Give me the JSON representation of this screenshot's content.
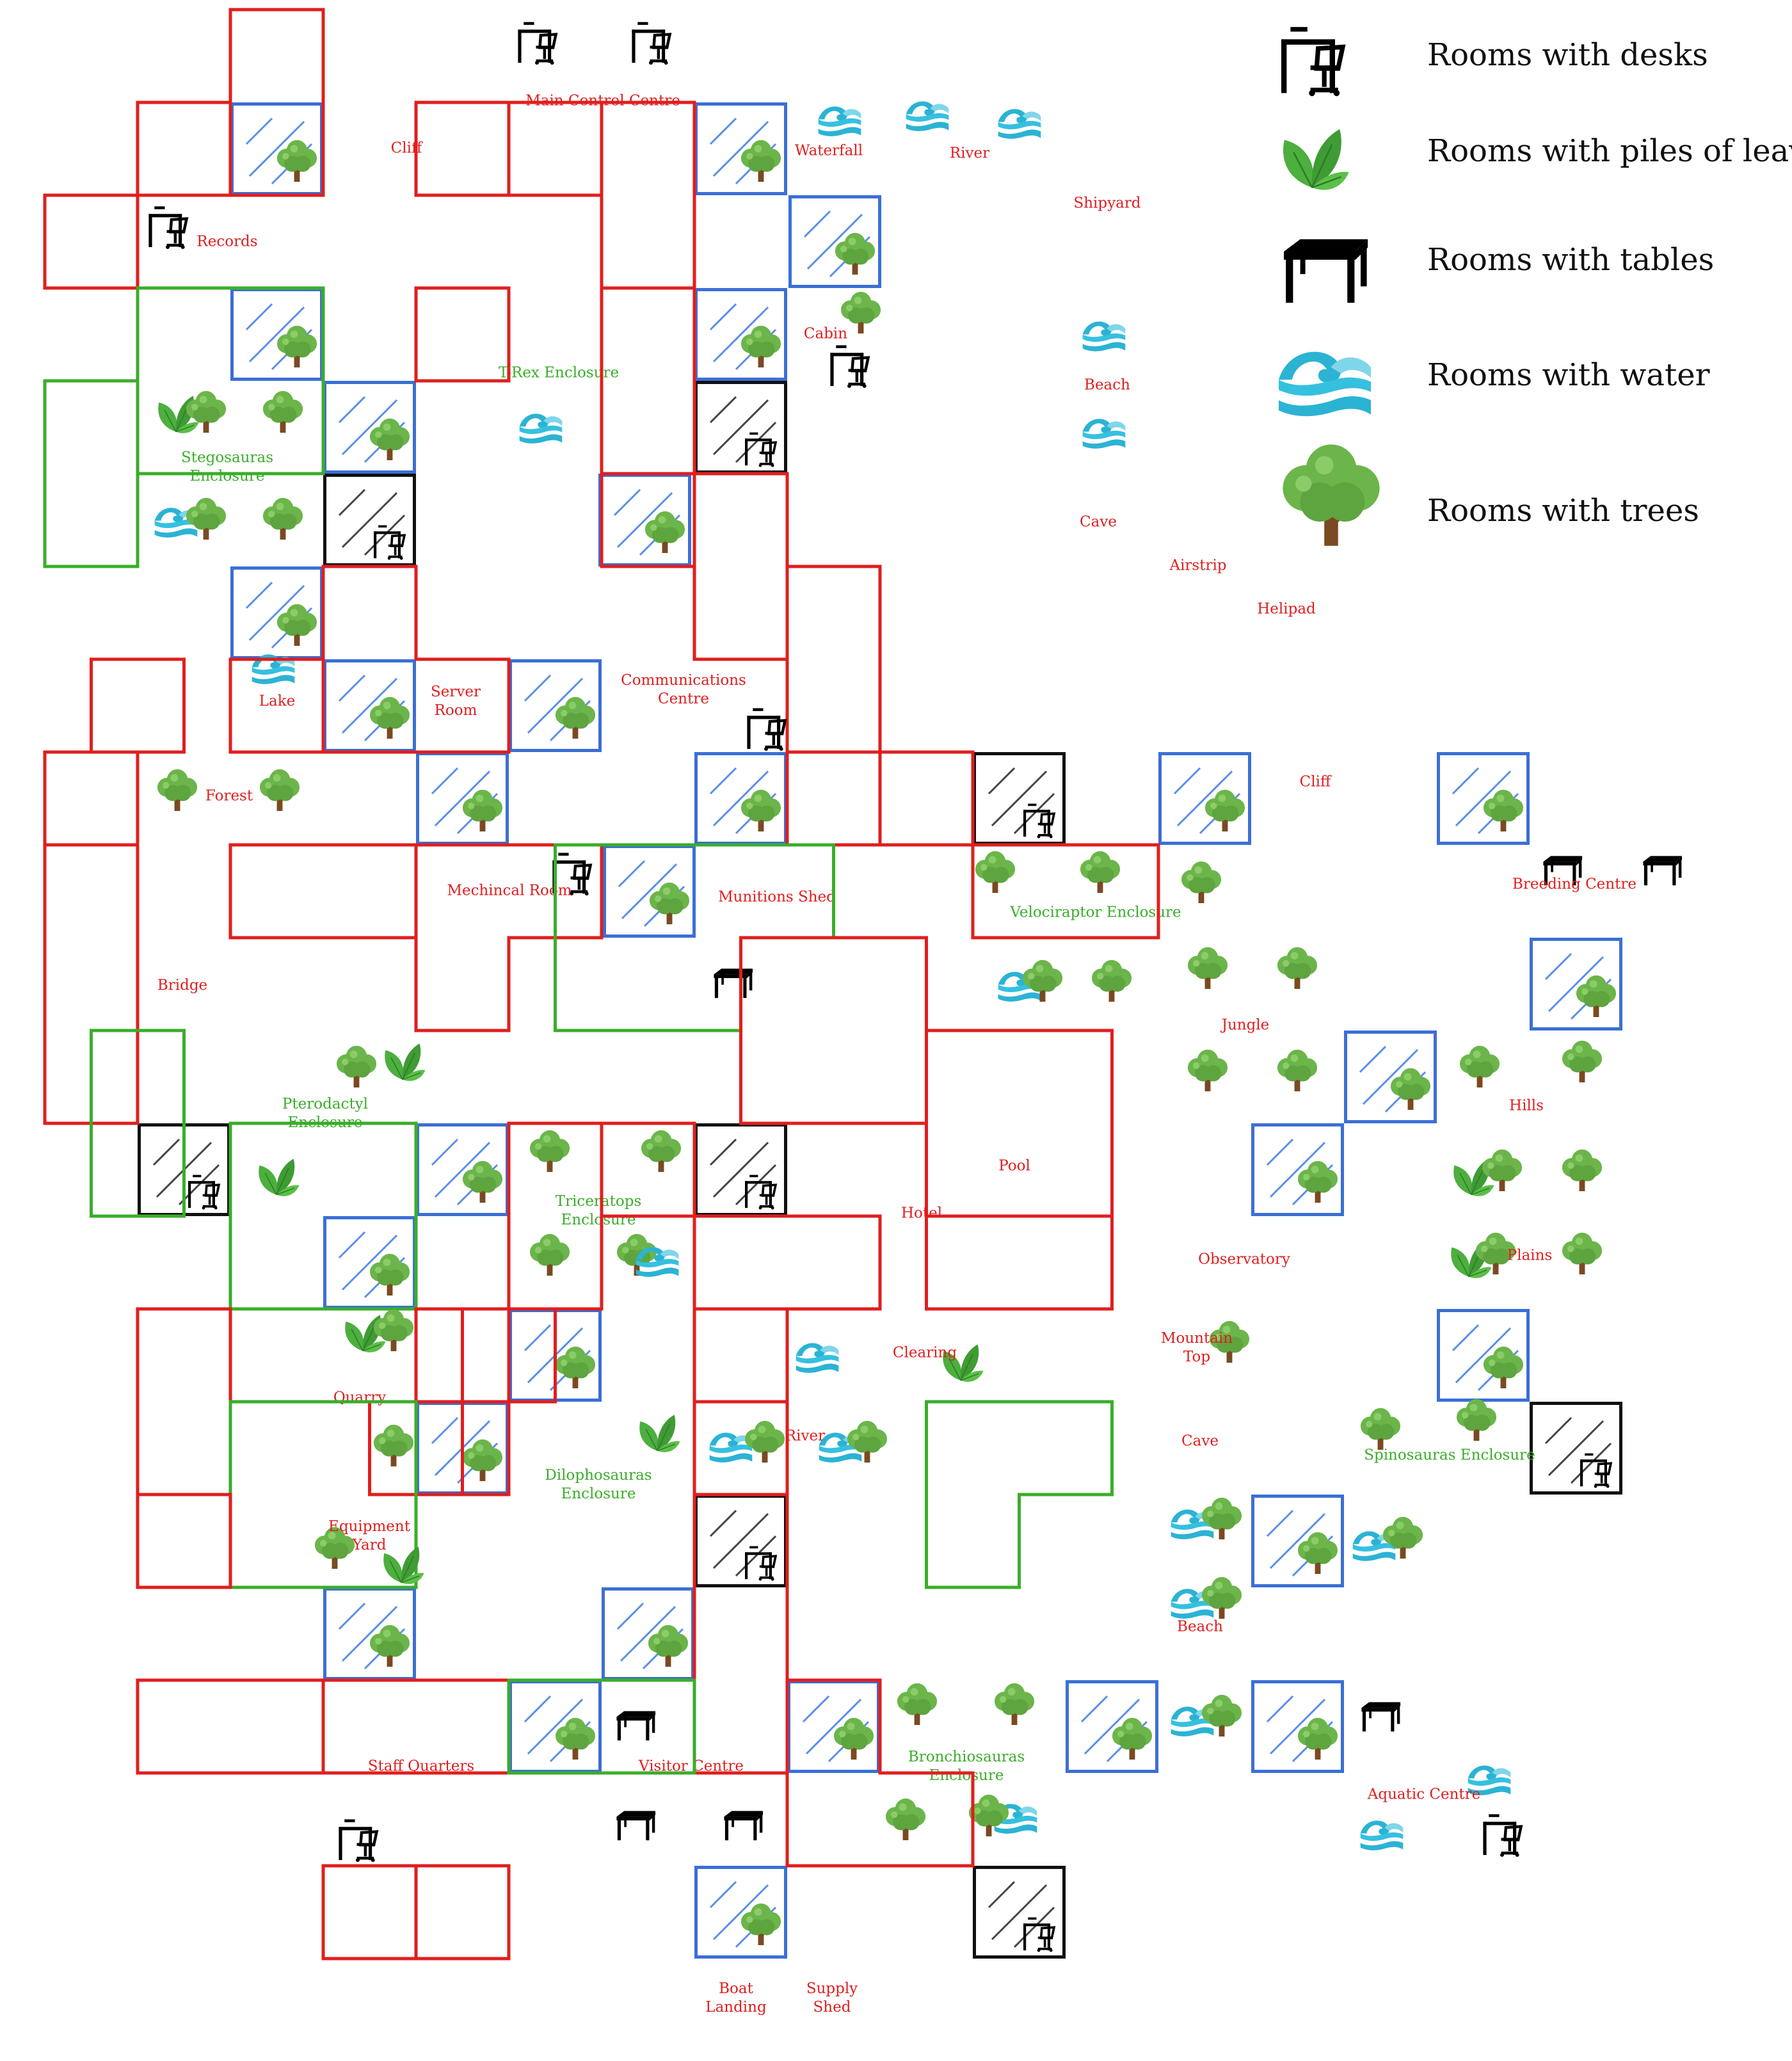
{
  "map": {
    "colors": {
      "room": "#e01e1e",
      "enclosure": "#3aad2a",
      "corridor": "#3b6fd6",
      "hatched": "#111111"
    },
    "legend": [
      {
        "icon": "desk-icon",
        "label": "Rooms with desks"
      },
      {
        "icon": "leaves-icon",
        "label": "Rooms with piles of leaves"
      },
      {
        "icon": "table-icon",
        "label": "Rooms with tables"
      },
      {
        "icon": "water-icon",
        "label": "Rooms with water"
      },
      {
        "icon": "tree-icon",
        "label": "Rooms with trees"
      }
    ],
    "rooms": [
      {
        "name": "Main Control Centre",
        "type": "room",
        "contents": [
          "desk-icon",
          "desk-icon"
        ]
      },
      {
        "name": "Cliff",
        "type": "room",
        "contents": []
      },
      {
        "name": "Waterfall",
        "type": "room",
        "contents": [
          "water-icon"
        ]
      },
      {
        "name": "River",
        "type": "room",
        "contents": [
          "water-icon",
          "water-icon"
        ]
      },
      {
        "name": "Shipyard",
        "type": "room",
        "contents": []
      },
      {
        "name": "Records",
        "type": "room",
        "contents": [
          "desk-icon"
        ]
      },
      {
        "name": "T-Rex Enclosure",
        "type": "enclosure",
        "contents": [
          "water-icon"
        ]
      },
      {
        "name": "Cabin",
        "type": "room",
        "contents": [
          "tree-icon",
          "desk-icon"
        ]
      },
      {
        "name": "Beach",
        "type": "room",
        "contents": [
          "water-icon",
          "water-icon"
        ]
      },
      {
        "name": "Stegosauras\nEnclosure",
        "type": "enclosure",
        "contents": [
          "leaves-icon",
          "tree-icon",
          "tree-icon",
          "water-icon",
          "tree-icon",
          "tree-icon"
        ]
      },
      {
        "name": "Cave",
        "type": "room",
        "contents": []
      },
      {
        "name": "Airstrip",
        "type": "room",
        "contents": []
      },
      {
        "name": "Helipad",
        "type": "room",
        "contents": []
      },
      {
        "name": "Lake",
        "type": "room",
        "contents": [
          "water-icon"
        ]
      },
      {
        "name": "Server\nRoom",
        "type": "room",
        "contents": []
      },
      {
        "name": "Communications\nCentre",
        "type": "room",
        "contents": [
          "desk-icon"
        ]
      },
      {
        "name": "Cliff",
        "type": "room",
        "contents": []
      },
      {
        "name": "Forest",
        "type": "room",
        "contents": [
          "tree-icon",
          "tree-icon"
        ]
      },
      {
        "name": "Mechincal Room",
        "type": "room",
        "contents": [
          "desk-icon"
        ]
      },
      {
        "name": "Munitions Shed",
        "type": "room",
        "contents": [
          "table-icon"
        ]
      },
      {
        "name": "Velociraptor Enclosure",
        "type": "enclosure",
        "contents": [
          "tree-icon",
          "tree-icon",
          "tree-icon",
          "water-icon",
          "tree-icon",
          "tree-icon"
        ]
      },
      {
        "name": "Breeding Centre",
        "type": "room",
        "contents": [
          "table-icon",
          "table-icon"
        ]
      },
      {
        "name": "Bridge",
        "type": "room",
        "contents": []
      },
      {
        "name": "Jungle",
        "type": "room",
        "contents": [
          "tree-icon",
          "tree-icon",
          "tree-icon",
          "tree-icon"
        ]
      },
      {
        "name": "Pterodactyl\nEnclosure",
        "type": "enclosure",
        "contents": [
          "tree-icon",
          "leaves-icon",
          "leaves-icon"
        ]
      },
      {
        "name": "Hills",
        "type": "room",
        "contents": [
          "tree-icon",
          "tree-icon",
          "leaves-icon",
          "tree-icon",
          "tree-icon"
        ]
      },
      {
        "name": "Triceratops\nEnclosure",
        "type": "enclosure",
        "contents": [
          "tree-icon",
          "tree-icon",
          "tree-icon",
          "tree-icon",
          "water-icon"
        ]
      },
      {
        "name": "Hotel",
        "type": "room",
        "contents": []
      },
      {
        "name": "Pool",
        "type": "room",
        "contents": []
      },
      {
        "name": "Observatory",
        "type": "room",
        "contents": []
      },
      {
        "name": "Plains",
        "type": "room",
        "contents": [
          "leaves-icon",
          "tree-icon",
          "tree-icon"
        ]
      },
      {
        "name": "Quarry",
        "type": "room",
        "contents": [
          "leaves-icon",
          "tree-icon",
          "tree-icon"
        ]
      },
      {
        "name": "Clearing",
        "type": "room",
        "contents": [
          "leaves-icon"
        ]
      },
      {
        "name": "Mountain\nTop",
        "type": "room",
        "contents": [
          "tree-icon"
        ]
      },
      {
        "name": "River",
        "type": "room",
        "contents": [
          "water-icon",
          "water-icon",
          "tree-icon",
          "water-icon",
          "tree-icon"
        ]
      },
      {
        "name": "Dilophosauras\nEnclosure",
        "type": "enclosure",
        "contents": [
          "leaves-icon"
        ]
      },
      {
        "name": "Cave",
        "type": "room",
        "contents": []
      },
      {
        "name": "Spinosauras Enclosure",
        "type": "enclosure",
        "contents": [
          "tree-icon",
          "tree-icon",
          "water-icon",
          "tree-icon"
        ]
      },
      {
        "name": "Equipment\nYard",
        "type": "room",
        "contents": [
          "tree-icon",
          "leaves-icon"
        ]
      },
      {
        "name": "Beach",
        "type": "room",
        "contents": [
          "water-icon",
          "tree-icon",
          "water-icon",
          "tree-icon",
          "water-icon",
          "tree-icon"
        ]
      },
      {
        "name": "Staff Quarters",
        "type": "room",
        "contents": [
          "desk-icon"
        ]
      },
      {
        "name": "Visitor Centre",
        "type": "room",
        "contents": [
          "table-icon",
          "table-icon",
          "table-icon"
        ]
      },
      {
        "name": "Bronchiosauras\nEnclosure",
        "type": "enclosure",
        "contents": [
          "tree-icon",
          "tree-icon",
          "tree-icon",
          "tree-icon",
          "water-icon"
        ]
      },
      {
        "name": "Aquatic Centre",
        "type": "room",
        "contents": [
          "table-icon",
          "water-icon",
          "water-icon",
          "desk-icon"
        ]
      },
      {
        "name": "Boat\nLanding",
        "type": "room",
        "contents": []
      },
      {
        "name": "Supply\nShed",
        "type": "room",
        "contents": []
      }
    ]
  }
}
